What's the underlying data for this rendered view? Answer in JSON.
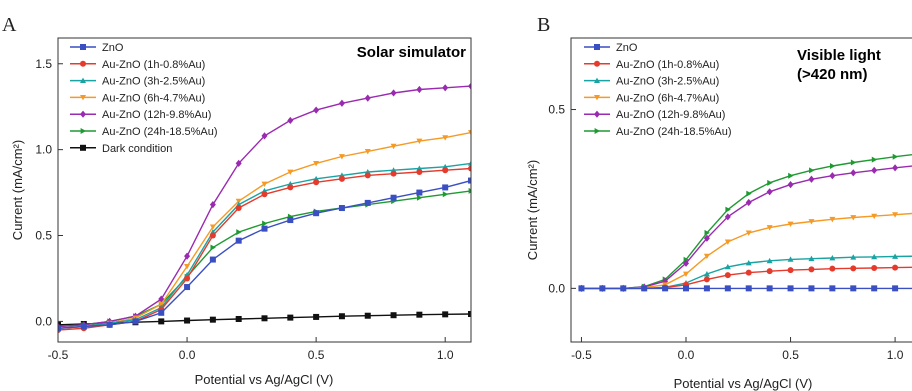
{
  "chart_data": [
    {
      "type": "line",
      "panel_label": "A",
      "title": "Solar simulator",
      "xlabel": "Potential vs Ag/AgCl (V)",
      "ylabel": "Current (mA/cm²)",
      "xlim": [
        -0.5,
        1.1
      ],
      "ylim": [
        -0.12,
        1.65
      ],
      "x_ticks": [
        -0.5,
        0.0,
        0.5,
        1.0
      ],
      "x_tick_labels": [
        "-0.5",
        "0.0",
        "0.5",
        "1.0"
      ],
      "y_ticks": [
        0.0,
        0.5,
        1.0,
        1.5
      ],
      "y_tick_labels": [
        "0.0",
        "0.5",
        "1.0",
        "1.5"
      ],
      "grid": false,
      "legend_position": "top-left",
      "x": [
        -0.5,
        -0.4,
        -0.3,
        -0.2,
        -0.1,
        0.0,
        0.1,
        0.2,
        0.3,
        0.4,
        0.5,
        0.6,
        0.7,
        0.8,
        0.9,
        1.0,
        1.1
      ],
      "series": [
        {
          "name": "ZnO",
          "color": "#3a4fc2",
          "marker": "square",
          "values": [
            -0.04,
            -0.03,
            -0.02,
            0.0,
            0.05,
            0.2,
            0.36,
            0.47,
            0.54,
            0.59,
            0.63,
            0.66,
            0.69,
            0.72,
            0.75,
            0.78,
            0.82
          ]
        },
        {
          "name": "Au-ZnO (1h-0.8%Au)",
          "color": "#e53a2c",
          "marker": "circle",
          "values": [
            -0.05,
            -0.04,
            -0.02,
            0.0,
            0.07,
            0.25,
            0.5,
            0.66,
            0.74,
            0.78,
            0.81,
            0.83,
            0.85,
            0.86,
            0.87,
            0.88,
            0.89
          ]
        },
        {
          "name": "Au-ZnO (3h-2.5%Au)",
          "color": "#1aa3a3",
          "marker": "triangle-up",
          "values": [
            -0.04,
            -0.03,
            -0.01,
            0.01,
            0.08,
            0.27,
            0.52,
            0.68,
            0.76,
            0.8,
            0.83,
            0.85,
            0.87,
            0.88,
            0.89,
            0.9,
            0.92
          ]
        },
        {
          "name": "Au-ZnO (6h-4.7%Au)",
          "color": "#f59a24",
          "marker": "triangle-down",
          "values": [
            -0.04,
            -0.03,
            -0.01,
            0.02,
            0.1,
            0.32,
            0.55,
            0.7,
            0.8,
            0.87,
            0.92,
            0.96,
            0.99,
            1.02,
            1.05,
            1.07,
            1.1
          ]
        },
        {
          "name": "Au-ZnO (12h-9.8%Au)",
          "color": "#9a2ab0",
          "marker": "diamond",
          "values": [
            -0.03,
            -0.02,
            0.0,
            0.03,
            0.13,
            0.38,
            0.68,
            0.92,
            1.08,
            1.17,
            1.23,
            1.27,
            1.3,
            1.33,
            1.35,
            1.36,
            1.37
          ]
        },
        {
          "name": "Au-ZnO (24h-18.5%Au)",
          "color": "#1f9a32",
          "marker": "triangle-right",
          "values": [
            -0.03,
            -0.02,
            0.0,
            0.03,
            0.1,
            0.26,
            0.43,
            0.52,
            0.57,
            0.61,
            0.64,
            0.66,
            0.68,
            0.7,
            0.72,
            0.74,
            0.76
          ]
        },
        {
          "name": "Dark condition",
          "color": "#111111",
          "marker": "square",
          "values": [
            -0.02,
            -0.015,
            -0.01,
            -0.005,
            0.0,
            0.005,
            0.01,
            0.014,
            0.018,
            0.022,
            0.026,
            0.03,
            0.033,
            0.036,
            0.039,
            0.041,
            0.043
          ]
        }
      ]
    },
    {
      "type": "line",
      "panel_label": "B",
      "title": "Visible light\n(>420 nm)",
      "xlabel": "Potential vs Ag/AgCl (V)",
      "ylabel": "Current (mA/cm²)",
      "xlim": [
        -0.55,
        1.1
      ],
      "ylim": [
        -0.15,
        0.7
      ],
      "x_ticks": [
        -0.5,
        0.0,
        0.5,
        1.0
      ],
      "x_tick_labels": [
        "-0.5",
        "0.0",
        "0.5",
        "1.0"
      ],
      "y_ticks": [
        0.0,
        0.5
      ],
      "y_tick_labels": [
        "0.0",
        "0.5"
      ],
      "grid": false,
      "legend_position": "top-left",
      "x": [
        -0.5,
        -0.4,
        -0.3,
        -0.2,
        -0.1,
        0.0,
        0.1,
        0.2,
        0.3,
        0.4,
        0.5,
        0.6,
        0.7,
        0.8,
        0.9,
        1.0,
        1.1
      ],
      "series": [
        {
          "name": "ZnO",
          "color": "#3a4fc2",
          "marker": "square",
          "values": [
            0,
            0,
            0,
            0,
            0,
            0,
            0,
            0,
            0,
            0,
            0,
            0,
            0,
            0,
            0,
            0,
            0
          ]
        },
        {
          "name": "Au-ZnO (1h-0.8%Au)",
          "color": "#e53a2c",
          "marker": "circle",
          "values": [
            0,
            0,
            0,
            0,
            0.002,
            0.01,
            0.025,
            0.037,
            0.044,
            0.048,
            0.051,
            0.053,
            0.055,
            0.056,
            0.057,
            0.058,
            0.059
          ]
        },
        {
          "name": "Au-ZnO (3h-2.5%Au)",
          "color": "#1aa3a3",
          "marker": "triangle-up",
          "values": [
            0,
            0,
            0,
            0,
            0.003,
            0.015,
            0.04,
            0.06,
            0.071,
            0.077,
            0.081,
            0.083,
            0.085,
            0.087,
            0.088,
            0.089,
            0.09
          ]
        },
        {
          "name": "Au-ZnO (6h-4.7%Au)",
          "color": "#f59a24",
          "marker": "triangle-down",
          "values": [
            0,
            0,
            0,
            0.002,
            0.01,
            0.04,
            0.09,
            0.13,
            0.155,
            0.17,
            0.18,
            0.187,
            0.193,
            0.198,
            0.202,
            0.206,
            0.21
          ]
        },
        {
          "name": "Au-ZnO (12h-9.8%Au)",
          "color": "#9a2ab0",
          "marker": "diamond",
          "values": [
            0,
            0,
            0,
            0.004,
            0.02,
            0.07,
            0.14,
            0.2,
            0.24,
            0.27,
            0.29,
            0.305,
            0.315,
            0.323,
            0.33,
            0.337,
            0.343
          ]
        },
        {
          "name": "Au-ZnO (24h-18.5%Au)",
          "color": "#1f9a32",
          "marker": "triangle-right",
          "values": [
            0,
            0,
            0,
            0.005,
            0.025,
            0.08,
            0.155,
            0.22,
            0.265,
            0.295,
            0.315,
            0.33,
            0.342,
            0.352,
            0.36,
            0.368,
            0.375
          ]
        }
      ]
    }
  ]
}
